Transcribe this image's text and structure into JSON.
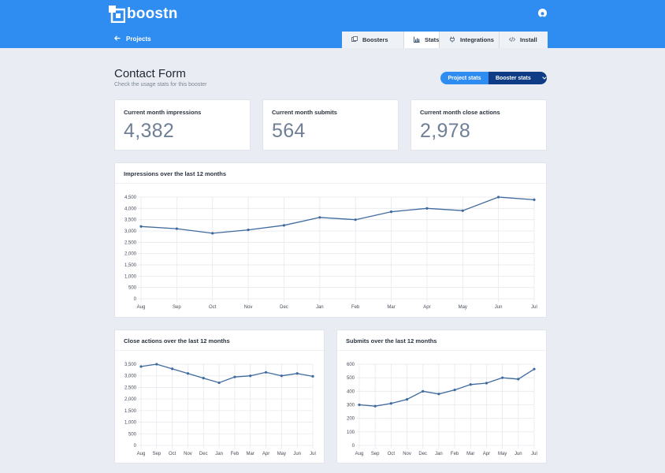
{
  "brand": {
    "name": "boostn"
  },
  "nav": {
    "back_label": "Projects",
    "tabs": [
      {
        "label": "Boosters",
        "icon": "layers-icon"
      },
      {
        "label": "Stats",
        "icon": "bar-chart-icon"
      },
      {
        "label": "Integrations",
        "icon": "plug-icon"
      },
      {
        "label": "Install",
        "icon": "code-icon"
      }
    ],
    "active_tab": "Stats"
  },
  "page": {
    "title": "Contact Form",
    "subtitle": "Check the usage stats for this booster"
  },
  "toggle": {
    "project_label": "Project stats",
    "booster_label": "Booster stats"
  },
  "stats": [
    {
      "label": "Current month impressions",
      "value": "4,382"
    },
    {
      "label": "Current month submits",
      "value": "564"
    },
    {
      "label": "Current month close actions",
      "value": "2,978"
    }
  ],
  "colors": {
    "primary": "#2f8cf0",
    "dark": "#0e3d86",
    "line": "#3f6a9e"
  },
  "chart_data": [
    {
      "type": "line",
      "title": "Impressions over the last 12 months",
      "categories": [
        "Aug",
        "Sep",
        "Oct",
        "Nov",
        "Dec",
        "Jan",
        "Feb",
        "Mar",
        "Apr",
        "May",
        "Jun",
        "Jul"
      ],
      "values": [
        3200,
        3100,
        2900,
        3050,
        3250,
        3600,
        3500,
        3850,
        4000,
        3900,
        4500,
        4382
      ],
      "yticks": [
        "0",
        "500",
        "1,000",
        "1,500",
        "2,000",
        "2,500",
        "3,000",
        "3,500",
        "4,000",
        "4,500"
      ],
      "ylim": [
        0,
        4500
      ],
      "grid": true
    },
    {
      "type": "line",
      "title": "Close actions over the last 12 months",
      "categories": [
        "Aug",
        "Sep",
        "Oct",
        "Nov",
        "Dec",
        "Jan",
        "Feb",
        "Mar",
        "Apr",
        "May",
        "Jun",
        "Jul"
      ],
      "values": [
        3400,
        3500,
        3300,
        3100,
        2900,
        2700,
        2950,
        3000,
        3150,
        3000,
        3100,
        2978
      ],
      "yticks": [
        "0",
        "500",
        "1,000",
        "1,500",
        "2,000",
        "2,500",
        "3,000",
        "3,500"
      ],
      "ylim": [
        0,
        3500
      ],
      "grid": true
    },
    {
      "type": "line",
      "title": "Submits over the last 12 months",
      "categories": [
        "Aug",
        "Sep",
        "Oct",
        "Nov",
        "Dec",
        "Jan",
        "Feb",
        "Mar",
        "Apr",
        "May",
        "Jun",
        "Jul"
      ],
      "values": [
        300,
        290,
        310,
        340,
        400,
        380,
        410,
        450,
        460,
        500,
        490,
        564
      ],
      "yticks": [
        "0",
        "100",
        "200",
        "300",
        "400",
        "500",
        "600"
      ],
      "ylim": [
        0,
        600
      ],
      "grid": true
    }
  ]
}
